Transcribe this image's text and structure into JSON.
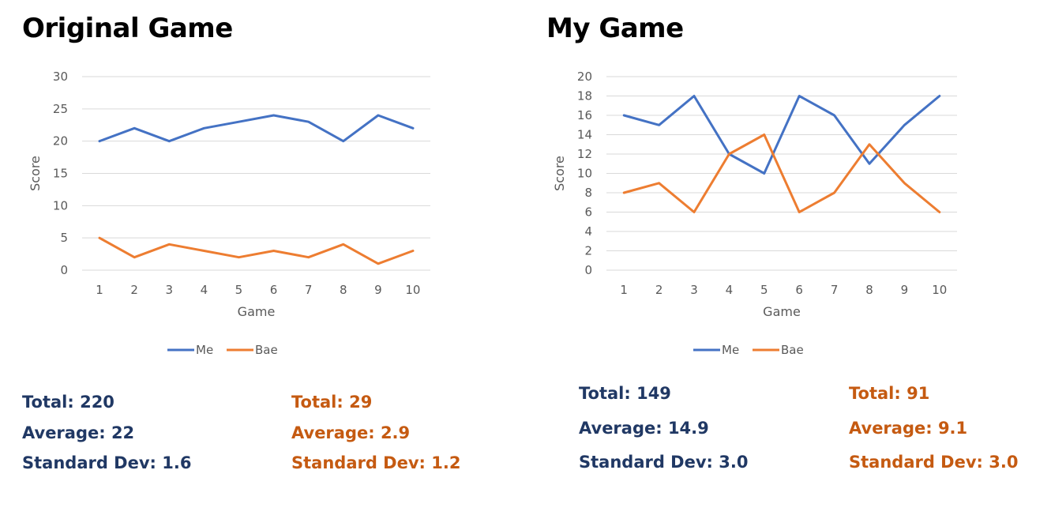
{
  "titles": {
    "left": "Original Game",
    "right": "My Game"
  },
  "colors": {
    "me": "#4472C4",
    "bae": "#ED7D31",
    "me_text": "#203864",
    "bae_text": "#C55A11",
    "grid": "#D9D9D9",
    "axis_text": "#595959"
  },
  "chart_data": [
    {
      "type": "line",
      "title": "Original Game",
      "xlabel": "Game",
      "ylabel": "Score",
      "categories": [
        "1",
        "2",
        "3",
        "4",
        "5",
        "6",
        "7",
        "8",
        "9",
        "10"
      ],
      "yticks": [
        "0",
        "5",
        "10",
        "15",
        "20",
        "25",
        "30"
      ],
      "ylim": [
        0,
        30
      ],
      "grid": true,
      "legend": "bottom",
      "series": [
        {
          "name": "Me",
          "values": [
            20,
            22,
            20,
            22,
            23,
            24,
            23,
            20,
            24,
            22
          ]
        },
        {
          "name": "Bae",
          "values": [
            5,
            2,
            4,
            3,
            2,
            3,
            2,
            4,
            1,
            3
          ]
        }
      ]
    },
    {
      "type": "line",
      "title": "My Game",
      "xlabel": "Game",
      "ylabel": "Score",
      "categories": [
        "1",
        "2",
        "3",
        "4",
        "5",
        "6",
        "7",
        "8",
        "9",
        "10"
      ],
      "yticks": [
        "0",
        "2",
        "4",
        "6",
        "8",
        "10",
        "12",
        "14",
        "16",
        "18",
        "20"
      ],
      "ylim": [
        0,
        20
      ],
      "grid": true,
      "legend": "bottom",
      "series": [
        {
          "name": "Me",
          "values": [
            16,
            15,
            18,
            12,
            10,
            18,
            16,
            11,
            15,
            18
          ]
        },
        {
          "name": "Bae",
          "values": [
            8,
            9,
            6,
            12,
            14,
            6,
            8,
            13,
            9,
            6
          ]
        }
      ]
    }
  ],
  "stats": {
    "left": {
      "me": {
        "total": "Total: 220",
        "average": "Average: 22",
        "std": "Standard Dev: 1.6"
      },
      "bae": {
        "total": "Total: 29",
        "average": "Average: 2.9",
        "std": "Standard Dev: 1.2"
      }
    },
    "right": {
      "me": {
        "total": "Total: 149",
        "average": "Average: 14.9",
        "std": "Standard Dev: 3.0"
      },
      "bae": {
        "total": "Total: 91",
        "average": "Average: 9.1",
        "std": "Standard Dev: 3.0"
      }
    }
  }
}
